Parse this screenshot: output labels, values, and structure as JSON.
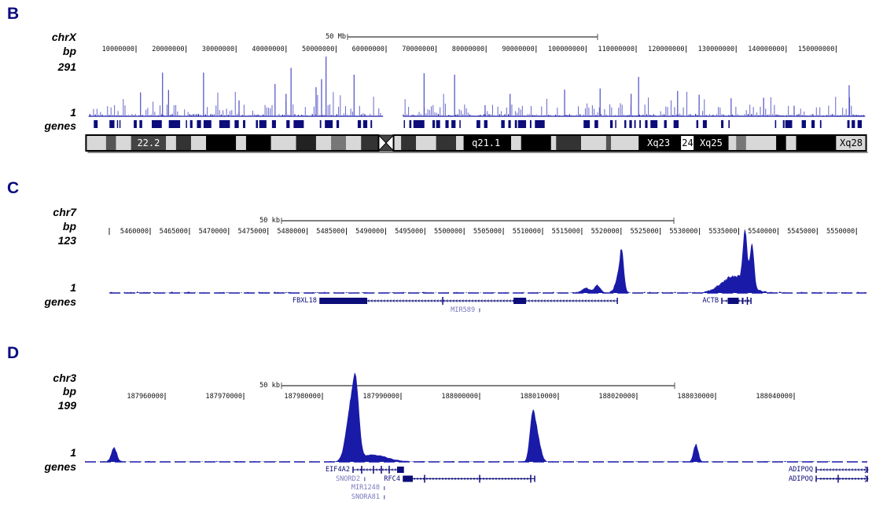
{
  "colors": {
    "signal": "#1a1aa8",
    "gene": "#0c0c7a",
    "gene_minor": "#7a7ac0",
    "letter": "#0b0b80"
  },
  "chart_data": [
    {
      "panel": "B",
      "type": "area",
      "chrom": "chrX",
      "unit": "bp",
      "ymax_label": "291",
      "ymin_label": "1",
      "track_label": "genes",
      "ylim": [
        1,
        291
      ],
      "xlim_mb": [
        0,
        156
      ],
      "scale_bar": "50 Mb",
      "ticks": [
        "10000000",
        "20000000",
        "30000000",
        "40000000",
        "50000000",
        "60000000",
        "70000000",
        "80000000",
        "90000000",
        "100000000",
        "110000000",
        "120000000",
        "130000000",
        "140000000",
        "150000000"
      ],
      "peaks_mb": [
        {
          "x": 10.9,
          "y": 117
        },
        {
          "x": 15.3,
          "y": 213
        },
        {
          "x": 16.5,
          "y": 129
        },
        {
          "x": 23.5,
          "y": 213
        },
        {
          "x": 30.6,
          "y": 78
        },
        {
          "x": 37.8,
          "y": 158
        },
        {
          "x": 40,
          "y": 110
        },
        {
          "x": 41,
          "y": 236
        },
        {
          "x": 46,
          "y": 142
        },
        {
          "x": 47.1,
          "y": 181
        },
        {
          "x": 48,
          "y": 291
        },
        {
          "x": 53.6,
          "y": 203
        },
        {
          "x": 67.6,
          "y": 210
        },
        {
          "x": 73.7,
          "y": 203
        },
        {
          "x": 79.8,
          "y": 55
        },
        {
          "x": 84.8,
          "y": 110
        },
        {
          "x": 95.7,
          "y": 130
        },
        {
          "x": 102.8,
          "y": 136
        },
        {
          "x": 109,
          "y": 110
        },
        {
          "x": 110.5,
          "y": 192
        },
        {
          "x": 118.3,
          "y": 124
        },
        {
          "x": 122.6,
          "y": 106
        },
        {
          "x": 129,
          "y": 88
        },
        {
          "x": 135.5,
          "y": 91
        },
        {
          "x": 141.6,
          "y": 52
        },
        {
          "x": 152.6,
          "y": 152
        }
      ],
      "no_data_mb": [
        59.4,
        61.4
      ],
      "ideogram": {
        "labels": [
          {
            "text": "22.2",
            "at": 12.5,
            "color": "#ffffff"
          },
          {
            "text": "q21.1",
            "at": 80,
            "color": "#ffffff"
          },
          {
            "text": "Xq23",
            "at": 114.5,
            "color": "#ffffff"
          },
          {
            "text": "24",
            "at": 120.3,
            "color": "#000000"
          },
          {
            "text": "Xq25",
            "at": 125,
            "color": "#ffffff"
          },
          {
            "text": "Xq28",
            "at": 153,
            "color": "#000000"
          }
        ],
        "bands": [
          [
            0,
            4,
            "#d8d8d8"
          ],
          [
            4,
            6,
            "#555555"
          ],
          [
            6,
            9,
            "#d8d8d8"
          ],
          [
            9,
            16,
            "#444444"
          ],
          [
            16,
            18,
            "#d8d8d8"
          ],
          [
            18,
            21,
            "#333333"
          ],
          [
            21,
            24,
            "#d8d8d8"
          ],
          [
            24,
            30,
            "#000000"
          ],
          [
            30,
            32,
            "#d8d8d8"
          ],
          [
            32,
            37,
            "#000000"
          ],
          [
            37,
            42,
            "#d8d8d8"
          ],
          [
            42,
            46,
            "#222222"
          ],
          [
            46,
            49,
            "#d8d8d8"
          ],
          [
            49,
            52,
            "#777777"
          ],
          [
            52,
            55,
            "#d8d8d8"
          ],
          [
            55,
            58.5,
            "#333333"
          ],
          [
            61.5,
            63,
            "#d8d8d8"
          ],
          [
            63,
            66,
            "#333333"
          ],
          [
            66,
            70,
            "#d8d8d8"
          ],
          [
            70,
            74,
            "#333333"
          ],
          [
            74,
            75.5,
            "#d8d8d8"
          ],
          [
            75.5,
            85,
            "#000000"
          ],
          [
            85,
            87,
            "#d8d8d8"
          ],
          [
            87,
            93,
            "#000000"
          ],
          [
            93,
            94,
            "#d8d8d8"
          ],
          [
            94,
            99,
            "#333333"
          ],
          [
            99,
            104,
            "#d8d8d8"
          ],
          [
            104,
            105,
            "#555555"
          ],
          [
            105,
            110.5,
            "#d8d8d8"
          ],
          [
            110.5,
            119,
            "#000000"
          ],
          [
            119,
            121.5,
            "#ffffff"
          ],
          [
            121.5,
            128.5,
            "#000000"
          ],
          [
            128.5,
            130,
            "#d8d8d8"
          ],
          [
            130,
            132,
            "#777777"
          ],
          [
            132,
            138,
            "#d8d8d8"
          ],
          [
            138,
            140,
            "#000000"
          ],
          [
            140,
            142,
            "#d8d8d8"
          ],
          [
            142,
            150,
            "#000000"
          ],
          [
            150,
            156,
            "#d8d8d8"
          ]
        ]
      }
    },
    {
      "panel": "C",
      "type": "area",
      "chrom": "chr7",
      "unit": "bp",
      "ymax_label": "123",
      "ymin_label": "1",
      "track_label": "genes",
      "ylim": [
        1,
        123
      ],
      "xlim": [
        5454800,
        5551300
      ],
      "scale_bar": "50 kb",
      "ticks": [
        "5460000",
        "5465000",
        "5470000",
        "5475000",
        "5480000",
        "5485000",
        "5490000",
        "5495000",
        "5500000",
        "5505000",
        "5510000",
        "5515000",
        "5520000",
        "5525000",
        "5530000",
        "5535000",
        "5540000",
        "5545000",
        "5550000"
      ],
      "peaks": [
        {
          "x": 5515500,
          "y": 12,
          "sd": 500
        },
        {
          "x": 5517000,
          "y": 18,
          "sd": 400
        },
        {
          "x": 5519600,
          "y": 30,
          "sd": 400
        },
        {
          "x": 5520100,
          "y": 90,
          "sd": 280
        },
        {
          "x": 5534500,
          "y": 40,
          "sd": 1600
        },
        {
          "x": 5535800,
          "y": 123,
          "sd": 260
        },
        {
          "x": 5536700,
          "y": 100,
          "sd": 260
        }
      ],
      "genes": [
        {
          "name": "FBXL18",
          "start": 5481640,
          "end": 5519530,
          "thick": [
            [
              5481640,
              5487660
            ],
            [
              5506300,
              5507900
            ]
          ],
          "ticks": [
            5497280
          ],
          "label_side": "left",
          "row": 0,
          "major": true
        },
        {
          "name": "MIR589",
          "start": 5501800,
          "end": 5502000,
          "row": 1,
          "major": false,
          "label_side": "left"
        },
        {
          "name": "ACTB",
          "start": 5532850,
          "end": 5536560,
          "thick": [
            [
              5533600,
              5535000
            ],
            [
              5535400,
              5535600
            ]
          ],
          "ticks": [
            5536100
          ],
          "label_side": "left",
          "row": 0,
          "major": true
        }
      ]
    },
    {
      "panel": "D",
      "type": "area",
      "chrom": "chr3",
      "unit": "bp",
      "ymax_label": "199",
      "ymin_label": "1",
      "track_label": "genes",
      "ylim": [
        1,
        199
      ],
      "xlim": [
        187949800,
        188049300
      ],
      "scale_bar": "50 kb",
      "ticks": [
        "187960000",
        "187970000",
        "187980000",
        "187990000",
        "188000000",
        "188010000",
        "188020000",
        "188030000",
        "188040000"
      ],
      "peaks": [
        {
          "x": 187953500,
          "y": 50,
          "sd": 350
        },
        {
          "x": 187983600,
          "y": 180,
          "sd": 600
        },
        {
          "x": 187984300,
          "y": 199,
          "sd": 400
        },
        {
          "x": 187986500,
          "y": 25,
          "sd": 1800
        },
        {
          "x": 188006700,
          "y": 143,
          "sd": 350
        },
        {
          "x": 188007300,
          "y": 90,
          "sd": 450
        },
        {
          "x": 188027500,
          "y": 64,
          "sd": 300
        }
      ],
      "genes": [
        {
          "name": "EIF4A2",
          "start": 187983900,
          "end": 187990300,
          "thick": [
            [
              187989500,
              187990300
            ]
          ],
          "ticks": [
            187985000,
            187986500,
            187987500,
            187988500
          ],
          "label_side": "left",
          "row": 0,
          "major": true
        },
        {
          "name": "SNORD2",
          "start": 187985200,
          "end": 187985300,
          "row": 1,
          "major": false,
          "label_side": "left"
        },
        {
          "name": "RFC4",
          "start": 187990300,
          "end": 188007000,
          "thick": [
            [
              187990300,
              187991500
            ]
          ],
          "ticks": [
            187993000,
            188000000,
            188006500
          ],
          "label_side": "left",
          "row": 1,
          "major": true
        },
        {
          "name": "MIR1248",
          "start": 187987700,
          "end": 187987800,
          "row": 2,
          "major": false,
          "label_side": "left"
        },
        {
          "name": "SNORA81",
          "start": 187987700,
          "end": 187987800,
          "row": 3,
          "major": false,
          "label_side": "left"
        },
        {
          "name": "ADIPOQ",
          "start": 188042800,
          "end": 188049300,
          "ticks": [],
          "label_side": "left",
          "row": 0,
          "major": true,
          "arrow": true
        },
        {
          "name": "ADIPOQ",
          "start": 188042800,
          "end": 188049300,
          "ticks": [
            188045600
          ],
          "label_side": "left",
          "row": 1,
          "major": true,
          "arrow": true
        }
      ]
    }
  ]
}
